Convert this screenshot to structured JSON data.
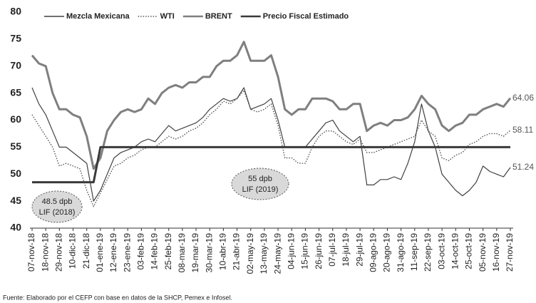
{
  "chart_data": {
    "type": "line",
    "categories": [
      "07-nov-18",
      null,
      "18-nov-18",
      null,
      "29-nov-18",
      null,
      "10-dic-18",
      null,
      "21-dic-18",
      null,
      "01-ene-19",
      null,
      "12-ene-19",
      null,
      "23-ene-19",
      null,
      "03-feb-19",
      null,
      "14-feb-19",
      null,
      "25-feb-19",
      null,
      "08-mar-19",
      null,
      "19-mar-19",
      null,
      "30-mar-19",
      null,
      "10-abr-19",
      null,
      "21-abr-19",
      null,
      "02-may-19",
      null,
      "13-may-19",
      null,
      "24-may-19",
      null,
      "04-jun-19",
      null,
      "15-jun-19",
      null,
      "26-jun-19",
      null,
      "07-jul-19",
      null,
      "18-jul-19",
      null,
      "29-jul-19",
      null,
      "09-ago-19",
      null,
      "20-ago-19",
      null,
      "31-ago-19",
      null,
      "11-sep-19",
      null,
      "22-sep-19",
      null,
      "03-oct-19",
      null,
      "14-oct-19",
      null,
      "25-oct-19",
      null,
      "05-nov-19",
      null,
      "16-nov-19",
      null,
      "27-nov-19"
    ],
    "series": [
      {
        "name": "Mezcla Mexicana",
        "color": "#404040",
        "width": 1.2,
        "style": "solid",
        "show_last_value": true,
        "values": [
          66,
          63,
          61,
          58,
          55,
          55,
          54,
          53,
          52,
          45,
          47,
          50,
          53,
          54,
          54.5,
          55,
          56,
          56.5,
          56,
          57.5,
          59,
          58,
          58.5,
          59,
          59.5,
          60.5,
          62,
          63,
          64,
          63.5,
          64,
          66,
          62,
          62.5,
          63,
          64,
          60,
          55,
          55,
          55,
          55,
          56.5,
          58,
          59.5,
          60,
          58,
          57,
          56,
          57,
          48,
          48,
          49,
          49,
          49.5,
          49,
          52,
          56,
          63,
          58,
          55,
          50,
          48.5,
          47,
          46,
          47,
          48.5,
          51.5,
          50.5,
          50,
          49.5,
          51.24
        ]
      },
      {
        "name": "WTI",
        "color": "#555555",
        "width": 1.4,
        "style": "dotted",
        "show_last_value": true,
        "values": [
          61,
          59,
          57,
          55,
          51.5,
          52,
          51.5,
          51,
          47,
          44,
          46.5,
          49,
          51.5,
          52,
          53,
          53.5,
          54.5,
          55,
          55,
          56,
          57,
          56.5,
          57,
          58,
          58.5,
          59.5,
          61,
          62,
          63.5,
          63,
          64,
          65.5,
          62,
          61.5,
          62,
          63,
          59,
          53,
          53,
          52,
          52,
          55,
          57,
          58,
          58,
          57,
          56,
          55.5,
          56.5,
          54,
          54,
          54.5,
          55,
          55.5,
          56,
          56.5,
          57,
          60,
          58,
          57,
          53,
          52.5,
          53.5,
          54,
          55.5,
          56,
          57,
          57.5,
          57.5,
          57,
          58.11
        ]
      },
      {
        "name": "BRENT",
        "color": "#7f7f7f",
        "width": 3,
        "style": "solid",
        "show_last_value": true,
        "values": [
          72,
          70.5,
          70,
          65,
          62,
          62,
          61,
          60.5,
          57,
          51,
          53,
          58,
          60,
          61.5,
          62,
          61.5,
          62,
          64,
          63,
          65,
          66,
          66.5,
          66,
          67,
          67,
          68,
          68,
          70,
          71,
          71,
          72,
          74.5,
          71,
          71,
          71,
          72,
          68,
          62,
          61,
          62,
          62,
          64,
          64,
          64,
          63.5,
          62,
          62,
          63,
          63,
          58,
          59,
          59.5,
          59,
          60,
          60,
          60.5,
          62,
          64.5,
          63,
          62,
          59,
          58,
          59,
          59.5,
          61,
          61,
          62,
          62.5,
          63,
          62.5,
          64.06
        ]
      },
      {
        "name": "Precio Fiscal Estimado",
        "color": "#3a3a3a",
        "width": 3,
        "style": "solid",
        "show_last_value": false,
        "values": [
          48.5,
          48.5,
          48.5,
          48.5,
          48.5,
          48.5,
          48.5,
          48.5,
          48.5,
          48.5,
          55,
          55,
          55,
          55,
          55,
          55,
          55,
          55,
          55,
          55,
          55,
          55,
          55,
          55,
          55,
          55,
          55,
          55,
          55,
          55,
          55,
          55,
          55,
          55,
          55,
          55,
          55,
          55,
          55,
          55,
          55,
          55,
          55,
          55,
          55,
          55,
          55,
          55,
          55,
          55,
          55,
          55,
          55,
          55,
          55,
          55,
          55,
          55,
          55,
          55,
          55,
          55,
          55,
          55,
          55,
          55,
          55,
          55,
          55,
          55,
          55
        ]
      }
    ],
    "ylim": [
      40,
      80
    ],
    "yticks": [
      40,
      45,
      50,
      55,
      60,
      65,
      70,
      75,
      80
    ],
    "grid": false,
    "legend": "top",
    "annotations": [
      {
        "lines": [
          "48.5 dpb",
          "LIF (2018)"
        ]
      },
      {
        "lines": [
          "55 dpb",
          "LIF (2019)"
        ]
      }
    ],
    "source": "Fuente: Elaborado por el CEFP con base en datos de la SHCP, Pemex e Infosel."
  }
}
